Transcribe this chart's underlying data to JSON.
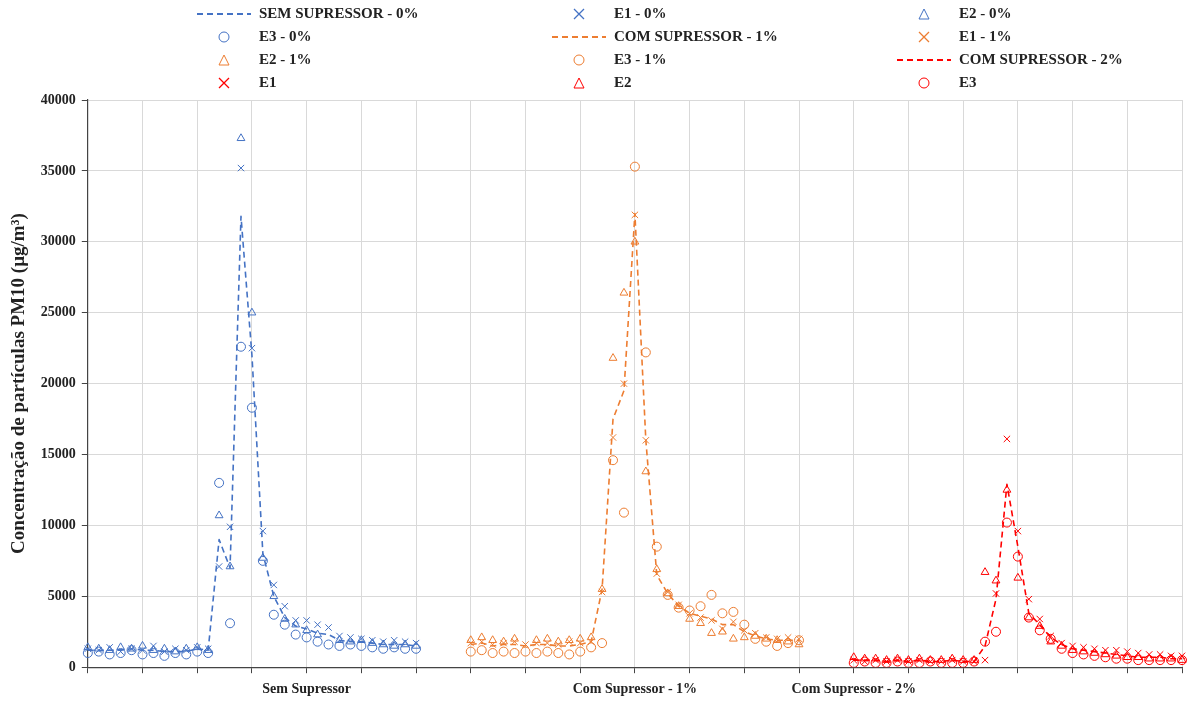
{
  "chart_data": {
    "type": "scatter",
    "ylabel": "Concentração de partículas PM10 (µg/m³)",
    "categories": [
      null,
      null,
      null,
      null,
      null,
      null,
      null,
      null,
      null,
      null,
      null,
      null,
      null,
      null,
      null,
      null,
      null,
      null,
      null,
      null,
      "Sem Supressor",
      null,
      null,
      null,
      null,
      null,
      null,
      null,
      null,
      null,
      null,
      null,
      null,
      null,
      null,
      null,
      null,
      null,
      null,
      null,
      null,
      null,
      null,
      null,
      null,
      null,
      null,
      null,
      null,
      null,
      "Com Supressor - 1%",
      null,
      null,
      null,
      null,
      null,
      null,
      null,
      null,
      null,
      null,
      null,
      null,
      null,
      null,
      null,
      null,
      null,
      null,
      null,
      "Com Supressor - 2%",
      null,
      null,
      null,
      null,
      null,
      null,
      null,
      null,
      null,
      null,
      null,
      null,
      null,
      null,
      null,
      null,
      null,
      null,
      null,
      null,
      null,
      null,
      null,
      null,
      null,
      null,
      null,
      null,
      null,
      null
    ],
    "ylim": [
      0,
      40000
    ],
    "yticks": [
      0,
      5000,
      10000,
      15000,
      20000,
      25000,
      30000,
      35000,
      40000
    ],
    "grid": true,
    "legend": "top",
    "series": [
      {
        "name": "SEM SUPRESSOR - 0%",
        "type": "line",
        "marker": "none",
        "line_style": "dashed",
        "color": "#4472c4",
        "values": [
          1200,
          1200,
          1200,
          1200,
          1300,
          1200,
          1200,
          1100,
          1100,
          1100,
          1300,
          1200,
          9000,
          7000,
          31800,
          22000,
          8000,
          5000,
          3500,
          2900,
          2700,
          2400,
          2300,
          1900,
          1800,
          1800,
          1700,
          1600,
          1600,
          1600,
          1500,
          null,
          null,
          null,
          null,
          null,
          null,
          null,
          null,
          null,
          null,
          null,
          null,
          null,
          null,
          null,
          null,
          null,
          null,
          null,
          null,
          null,
          null,
          null,
          null,
          null,
          null,
          null,
          null,
          null,
          null,
          null,
          null,
          null,
          null,
          null,
          null,
          null,
          null,
          null,
          null,
          null,
          null,
          null,
          null,
          null,
          null,
          null,
          null,
          null,
          null,
          null,
          null,
          null,
          null,
          null,
          null,
          null,
          null,
          null,
          null,
          null,
          null,
          null,
          null,
          null,
          null,
          null,
          null,
          null,
          null
        ]
      },
      {
        "name": "E1 - 0%",
        "marker": "cross",
        "color": "#4472c4",
        "values": [
          1300,
          1200,
          1400,
          1100,
          1300,
          1200,
          1500,
          1100,
          1300,
          1200,
          1400,
          1300,
          7100,
          9900,
          35200,
          22500,
          9600,
          5800,
          4300,
          3300,
          3300,
          3000,
          2800,
          2200,
          2100,
          2000,
          1900,
          1800,
          1900,
          1800,
          1700,
          null,
          null,
          null,
          null,
          null,
          null,
          null,
          null,
          null,
          null,
          null,
          null,
          null,
          null,
          null,
          null,
          null,
          null,
          null,
          null,
          null,
          null,
          null,
          null,
          null,
          null,
          null,
          null,
          null,
          null,
          null,
          null,
          null,
          null,
          null,
          null,
          null,
          null,
          null,
          null,
          null,
          null,
          null,
          null,
          null,
          null,
          null,
          null,
          null,
          null,
          null,
          null,
          null,
          null,
          null,
          null,
          null,
          null,
          null,
          null,
          null,
          null,
          null,
          null,
          null,
          null,
          null,
          null,
          null,
          null
        ]
      },
      {
        "name": "E2 - 0%",
        "marker": "triangle",
        "color": "#4472c4",
        "values": [
          1400,
          1300,
          1200,
          1400,
          1300,
          1500,
          1200,
          1300,
          1100,
          1300,
          1400,
          1200,
          10700,
          7100,
          37300,
          25000,
          7700,
          5000,
          3400,
          3000,
          2600,
          2300,
          null,
          1900,
          1800,
          1900,
          1700,
          1600,
          1500,
          1600,
          1500,
          null,
          null,
          null,
          null,
          null,
          null,
          null,
          null,
          null,
          null,
          null,
          null,
          null,
          null,
          null,
          null,
          null,
          null,
          null,
          null,
          null,
          null,
          null,
          null,
          null,
          null,
          null,
          null,
          null,
          null,
          null,
          null,
          null,
          null,
          null,
          null,
          null,
          null,
          null,
          null,
          null,
          null,
          null,
          null,
          null,
          null,
          null,
          null,
          null,
          null,
          null,
          null,
          null,
          null,
          null,
          null,
          null,
          null,
          null,
          null,
          null,
          null,
          null,
          null,
          null,
          null,
          null,
          null,
          null,
          null
        ]
      },
      {
        "name": "E3 - 0%",
        "marker": "circle",
        "color": "#4472c4",
        "values": [
          1000,
          1100,
          900,
          1000,
          1200,
          900,
          1000,
          800,
          1000,
          900,
          1100,
          1000,
          13000,
          3100,
          22600,
          18300,
          7500,
          3700,
          3000,
          2300,
          2100,
          1800,
          1600,
          1500,
          1600,
          1500,
          1400,
          1300,
          1400,
          1300,
          1300,
          null,
          null,
          null,
          null,
          null,
          null,
          null,
          null,
          null,
          null,
          null,
          null,
          null,
          null,
          null,
          null,
          null,
          null,
          null,
          null,
          null,
          null,
          null,
          null,
          null,
          null,
          null,
          null,
          null,
          null,
          null,
          null,
          null,
          null,
          null,
          null,
          null,
          null,
          null,
          null,
          null,
          null,
          null,
          null,
          null,
          null,
          null,
          null,
          null,
          null,
          null,
          null,
          null,
          null,
          null,
          null,
          null,
          null,
          null,
          null,
          null,
          null,
          null,
          null,
          null,
          null,
          null,
          null,
          null,
          null
        ]
      },
      {
        "name": "COM SUPRESSOR - 1%",
        "type": "line",
        "marker": "none",
        "line_style": "dashed",
        "color": "#ed7d31",
        "values": [
          null,
          null,
          null,
          null,
          null,
          null,
          null,
          null,
          null,
          null,
          null,
          null,
          null,
          null,
          null,
          null,
          null,
          null,
          null,
          null,
          null,
          null,
          null,
          null,
          null,
          null,
          null,
          null,
          null,
          null,
          null,
          null,
          null,
          null,
          null,
          1600,
          1700,
          1500,
          1600,
          1600,
          1500,
          1600,
          1600,
          1500,
          1500,
          1600,
          1800,
          5500,
          17500,
          19500,
          32000,
          16000,
          6500,
          5200,
          4300,
          3800,
          3600,
          3400,
          3000,
          3000,
          2500,
          2200,
          2000,
          1900,
          1900,
          1900,
          null,
          null,
          null,
          null,
          null,
          null,
          null,
          null,
          null,
          null,
          null,
          null,
          null,
          null,
          null,
          null,
          null,
          null,
          null,
          null,
          null,
          null,
          null,
          null,
          null,
          null,
          null,
          null,
          null,
          null,
          null,
          null,
          null,
          null,
          null
        ]
      },
      {
        "name": "E1 - 1%",
        "marker": "cross",
        "color": "#ed7d31",
        "values": [
          null,
          null,
          null,
          null,
          null,
          null,
          null,
          null,
          null,
          null,
          null,
          null,
          null,
          null,
          null,
          null,
          null,
          null,
          null,
          null,
          null,
          null,
          null,
          null,
          null,
          null,
          null,
          null,
          null,
          null,
          null,
          null,
          null,
          null,
          null,
          1700,
          1800,
          1600,
          1700,
          1800,
          1600,
          1700,
          1700,
          1600,
          1800,
          1700,
          1800,
          5300,
          16200,
          20000,
          31900,
          16000,
          6600,
          5300,
          4400,
          3800,
          3500,
          3300,
          2700,
          3200,
          2600,
          2400,
          2100,
          2000,
          2100,
          2000,
          null,
          null,
          null,
          null,
          null,
          null,
          null,
          null,
          null,
          null,
          null,
          null,
          null,
          null,
          null,
          null,
          null,
          null,
          null,
          null,
          null,
          null,
          null,
          null,
          null,
          null,
          null,
          null,
          null,
          null,
          null,
          null,
          null,
          null,
          null
        ]
      },
      {
        "name": "E2 - 1%",
        "marker": "triangle",
        "color": "#ed7d31",
        "values": [
          null,
          null,
          null,
          null,
          null,
          null,
          null,
          null,
          null,
          null,
          null,
          null,
          null,
          null,
          null,
          null,
          null,
          null,
          null,
          null,
          null,
          null,
          null,
          null,
          null,
          null,
          null,
          null,
          null,
          null,
          null,
          null,
          null,
          null,
          null,
          1900,
          2100,
          1900,
          1800,
          2000,
          null,
          1900,
          2000,
          1800,
          1900,
          2000,
          2100,
          5500,
          21800,
          26400,
          30000,
          13800,
          6900,
          5200,
          4300,
          3400,
          3100,
          2400,
          2500,
          2000,
          2100,
          2200,
          2000,
          1900,
          1800,
          1600,
          null,
          null,
          null,
          null,
          null,
          null,
          null,
          null,
          null,
          null,
          null,
          null,
          null,
          null,
          null,
          null,
          null,
          null,
          null,
          null,
          null,
          null,
          null,
          null,
          null,
          null,
          null,
          null,
          null,
          null,
          null,
          null,
          null,
          null,
          null
        ]
      },
      {
        "name": "E3 - 1%",
        "marker": "circle",
        "color": "#ed7d31",
        "values": [
          null,
          null,
          null,
          null,
          null,
          null,
          null,
          null,
          null,
          null,
          null,
          null,
          null,
          null,
          null,
          null,
          null,
          null,
          null,
          null,
          null,
          null,
          null,
          null,
          null,
          null,
          null,
          null,
          null,
          null,
          null,
          null,
          null,
          null,
          null,
          1100,
          1200,
          1000,
          1100,
          1000,
          1100,
          1000,
          1100,
          1000,
          900,
          1100,
          1400,
          1700,
          14600,
          10900,
          35300,
          22200,
          8500,
          5100,
          4200,
          4000,
          4300,
          5100,
          3800,
          3900,
          3000,
          2000,
          1800,
          1500,
          1700,
          1900,
          null,
          null,
          null,
          null,
          null,
          null,
          null,
          null,
          null,
          null,
          null,
          null,
          null,
          null,
          null,
          null,
          null,
          null,
          null,
          null,
          null,
          null,
          null,
          null,
          null,
          null,
          null,
          null,
          null,
          null,
          null,
          null,
          null,
          null,
          null
        ]
      },
      {
        "name": "COM SUPRESSOR - 2%",
        "type": "line",
        "marker": "none",
        "line_style": "dashed",
        "color": "#ff0000",
        "values": [
          null,
          null,
          null,
          null,
          null,
          null,
          null,
          null,
          null,
          null,
          null,
          null,
          null,
          null,
          null,
          null,
          null,
          null,
          null,
          null,
          null,
          null,
          null,
          null,
          null,
          null,
          null,
          null,
          null,
          null,
          null,
          null,
          null,
          null,
          null,
          null,
          null,
          null,
          null,
          null,
          null,
          null,
          null,
          null,
          null,
          null,
          null,
          null,
          null,
          null,
          null,
          null,
          null,
          null,
          null,
          null,
          null,
          null,
          null,
          null,
          null,
          null,
          null,
          null,
          null,
          null,
          null,
          null,
          null,
          null,
          500,
          500,
          500,
          400,
          500,
          400,
          500,
          400,
          400,
          500,
          400,
          400,
          1500,
          4800,
          12900,
          8500,
          3800,
          3000,
          2100,
          1600,
          1300,
          1200,
          1100,
          1000,
          900,
          800,
          700,
          700,
          700,
          600,
          600
        ]
      },
      {
        "name": "E1",
        "marker": "cross",
        "color": "#ff0000",
        "values": [
          null,
          null,
          null,
          null,
          null,
          null,
          null,
          null,
          null,
          null,
          null,
          null,
          null,
          null,
          null,
          null,
          null,
          null,
          null,
          null,
          null,
          null,
          null,
          null,
          null,
          null,
          null,
          null,
          null,
          null,
          null,
          null,
          null,
          null,
          null,
          null,
          null,
          null,
          null,
          null,
          null,
          null,
          null,
          null,
          null,
          null,
          null,
          null,
          null,
          null,
          null,
          null,
          null,
          null,
          null,
          null,
          null,
          null,
          null,
          null,
          null,
          null,
          null,
          null,
          null,
          null,
          null,
          null,
          null,
          null,
          500,
          400,
          500,
          400,
          500,
          400,
          500,
          400,
          400,
          500,
          400,
          400,
          500,
          5200,
          16100,
          9600,
          4800,
          3400,
          2200,
          1700,
          1500,
          1400,
          1300,
          1200,
          1200,
          1100,
          1000,
          900,
          900,
          800,
          800
        ]
      },
      {
        "name": "E2",
        "marker": "triangle",
        "color": "#ff0000",
        "values": [
          null,
          null,
          null,
          null,
          null,
          null,
          null,
          null,
          null,
          null,
          null,
          null,
          null,
          null,
          null,
          null,
          null,
          null,
          null,
          null,
          null,
          null,
          null,
          null,
          null,
          null,
          null,
          null,
          null,
          null,
          null,
          null,
          null,
          null,
          null,
          null,
          null,
          null,
          null,
          null,
          null,
          null,
          null,
          null,
          null,
          null,
          null,
          null,
          null,
          null,
          null,
          null,
          null,
          null,
          null,
          null,
          null,
          null,
          null,
          null,
          null,
          null,
          null,
          null,
          null,
          null,
          null,
          null,
          null,
          null,
          700,
          600,
          600,
          500,
          600,
          500,
          600,
          500,
          500,
          600,
          500,
          500,
          6700,
          6100,
          12500,
          6300,
          3500,
          2900,
          1800,
          1500,
          1200,
          1100,
          1000,
          900,
          800,
          700,
          700,
          600,
          600,
          600,
          500
        ]
      },
      {
        "name": "E3",
        "marker": "circle",
        "color": "#ff0000",
        "values": [
          null,
          null,
          null,
          null,
          null,
          null,
          null,
          null,
          null,
          null,
          null,
          null,
          null,
          null,
          null,
          null,
          null,
          null,
          null,
          null,
          null,
          null,
          null,
          null,
          null,
          null,
          null,
          null,
          null,
          null,
          null,
          null,
          null,
          null,
          null,
          null,
          null,
          null,
          null,
          null,
          null,
          null,
          null,
          null,
          null,
          null,
          null,
          null,
          null,
          null,
          null,
          null,
          null,
          null,
          null,
          null,
          null,
          null,
          null,
          null,
          null,
          null,
          null,
          null,
          null,
          null,
          null,
          null,
          null,
          null,
          300,
          400,
          300,
          300,
          400,
          300,
          300,
          400,
          300,
          300,
          300,
          400,
          1800,
          2500,
          10200,
          7800,
          3500,
          2600,
          2000,
          1300,
          1000,
          900,
          800,
          700,
          600,
          600,
          500,
          500,
          500,
          500,
          500
        ]
      }
    ]
  }
}
